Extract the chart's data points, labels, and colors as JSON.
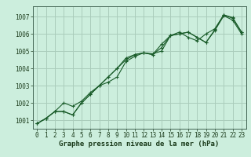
{
  "title": "Graphe pression niveau de la mer (hPa)",
  "background_color": "#cceedd",
  "grid_color": "#aaccbb",
  "line_color": "#1a5c2a",
  "marker_color": "#1a5c2a",
  "xlim": [
    -0.5,
    23.5
  ],
  "ylim": [
    1000.5,
    1007.6
  ],
  "yticks": [
    1001,
    1002,
    1003,
    1004,
    1005,
    1006,
    1007
  ],
  "xticks": [
    0,
    1,
    2,
    3,
    4,
    5,
    6,
    7,
    8,
    9,
    10,
    11,
    12,
    13,
    14,
    15,
    16,
    17,
    18,
    19,
    20,
    21,
    22,
    23
  ],
  "series": [
    [
      1000.8,
      1001.1,
      1001.5,
      1001.5,
      1001.3,
      1002.0,
      1002.5,
      1003.0,
      1003.5,
      1004.0,
      1004.6,
      1004.8,
      1004.9,
      1004.85,
      1005.0,
      1005.9,
      1006.0,
      1006.1,
      1005.8,
      1005.5,
      1006.25,
      1007.1,
      1006.95,
      1006.1
    ],
    [
      1000.8,
      1001.1,
      1001.5,
      1001.5,
      1001.3,
      1002.0,
      1002.5,
      1003.0,
      1003.5,
      1004.0,
      1004.5,
      1004.8,
      1004.9,
      1004.8,
      1005.4,
      1005.9,
      1006.0,
      1006.1,
      1005.8,
      1005.5,
      1006.2,
      1007.05,
      1006.8,
      1006.0
    ],
    [
      1000.8,
      1001.1,
      1001.5,
      1002.0,
      1001.8,
      1002.1,
      1002.6,
      1003.0,
      1003.2,
      1003.5,
      1004.4,
      1004.7,
      1004.9,
      1004.8,
      1005.2,
      1005.9,
      1006.1,
      1005.8,
      1005.6,
      1006.0,
      1006.3,
      1007.1,
      1006.9,
      1006.1
    ]
  ],
  "tick_fontsize": 5.5,
  "xlabel_fontsize": 6.5
}
